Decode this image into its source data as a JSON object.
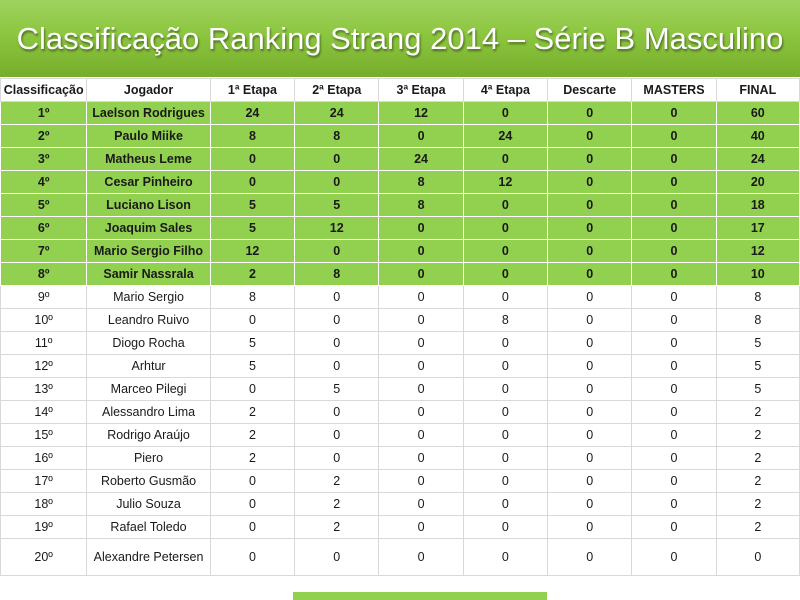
{
  "title": "Classificação Ranking Strang 2014 – Série B Masculino",
  "accent_color": "#92d050",
  "headers": [
    "Classificação",
    "Jogador",
    "1ª Etapa",
    "2ª Etapa",
    "3ª Etapa",
    "4ª Etapa",
    "Descarte",
    "MASTERS",
    "FINAL"
  ],
  "rows": [
    {
      "pos": "1º",
      "name": "Laelson Rodrigues",
      "e1": "24",
      "e2": "24",
      "e3": "12",
      "e4": "0",
      "descarte": "0",
      "masters": "0",
      "final": "60",
      "qualified": true
    },
    {
      "pos": "2º",
      "name": "Paulo Miike",
      "e1": "8",
      "e2": "8",
      "e3": "0",
      "e4": "24",
      "descarte": "0",
      "masters": "0",
      "final": "40",
      "qualified": true
    },
    {
      "pos": "3º",
      "name": "Matheus Leme",
      "e1": "0",
      "e2": "0",
      "e3": "24",
      "e4": "0",
      "descarte": "0",
      "masters": "0",
      "final": "24",
      "qualified": true
    },
    {
      "pos": "4º",
      "name": "Cesar Pinheiro",
      "e1": "0",
      "e2": "0",
      "e3": "8",
      "e4": "12",
      "descarte": "0",
      "masters": "0",
      "final": "20",
      "qualified": true
    },
    {
      "pos": "5º",
      "name": "Luciano Lison",
      "e1": "5",
      "e2": "5",
      "e3": "8",
      "e4": "0",
      "descarte": "0",
      "masters": "0",
      "final": "18",
      "qualified": true
    },
    {
      "pos": "6º",
      "name": "Joaquim Sales",
      "e1": "5",
      "e2": "12",
      "e3": "0",
      "e4": "0",
      "descarte": "0",
      "masters": "0",
      "final": "17",
      "qualified": true
    },
    {
      "pos": "7º",
      "name": "Mario Sergio Filho",
      "e1": "12",
      "e2": "0",
      "e3": "0",
      "e4": "0",
      "descarte": "0",
      "masters": "0",
      "final": "12",
      "qualified": true
    },
    {
      "pos": "8º",
      "name": "Samir Nassrala",
      "e1": "2",
      "e2": "8",
      "e3": "0",
      "e4": "0",
      "descarte": "0",
      "masters": "0",
      "final": "10",
      "qualified": true
    },
    {
      "pos": "9º",
      "name": "Mario Sergio",
      "e1": "8",
      "e2": "0",
      "e3": "0",
      "e4": "0",
      "descarte": "0",
      "masters": "0",
      "final": "8",
      "qualified": false
    },
    {
      "pos": "10º",
      "name": "Leandro Ruivo",
      "e1": "0",
      "e2": "0",
      "e3": "0",
      "e4": "8",
      "descarte": "0",
      "masters": "0",
      "final": "8",
      "qualified": false
    },
    {
      "pos": "11º",
      "name": "Diogo Rocha",
      "e1": "5",
      "e2": "0",
      "e3": "0",
      "e4": "0",
      "descarte": "0",
      "masters": "0",
      "final": "5",
      "qualified": false
    },
    {
      "pos": "12º",
      "name": "Arhtur",
      "e1": "5",
      "e2": "0",
      "e3": "0",
      "e4": "0",
      "descarte": "0",
      "masters": "0",
      "final": "5",
      "qualified": false
    },
    {
      "pos": "13º",
      "name": "Marceo Pilegi",
      "e1": "0",
      "e2": "5",
      "e3": "0",
      "e4": "0",
      "descarte": "0",
      "masters": "0",
      "final": "5",
      "qualified": false
    },
    {
      "pos": "14º",
      "name": "Alessandro Lima",
      "e1": "2",
      "e2": "0",
      "e3": "0",
      "e4": "0",
      "descarte": "0",
      "masters": "0",
      "final": "2",
      "qualified": false
    },
    {
      "pos": "15º",
      "name": "Rodrigo Araújo",
      "e1": "2",
      "e2": "0",
      "e3": "0",
      "e4": "0",
      "descarte": "0",
      "masters": "0",
      "final": "2",
      "qualified": false
    },
    {
      "pos": "16º",
      "name": "Piero",
      "e1": "2",
      "e2": "0",
      "e3": "0",
      "e4": "0",
      "descarte": "0",
      "masters": "0",
      "final": "2",
      "qualified": false
    },
    {
      "pos": "17º",
      "name": "Roberto Gusmão",
      "e1": "0",
      "e2": "2",
      "e3": "0",
      "e4": "0",
      "descarte": "0",
      "masters": "0",
      "final": "2",
      "qualified": false
    },
    {
      "pos": "18º",
      "name": "Julio Souza",
      "e1": "0",
      "e2": "2",
      "e3": "0",
      "e4": "0",
      "descarte": "0",
      "masters": "0",
      "final": "2",
      "qualified": false
    },
    {
      "pos": "19º",
      "name": "Rafael Toledo",
      "e1": "0",
      "e2": "2",
      "e3": "0",
      "e4": "0",
      "descarte": "0",
      "masters": "0",
      "final": "2",
      "qualified": false
    },
    {
      "pos": "20º",
      "name": "Alexandre Petersen",
      "e1": "0",
      "e2": "0",
      "e3": "0",
      "e4": "0",
      "descarte": "0",
      "masters": "0",
      "final": "0",
      "qualified": false
    }
  ]
}
